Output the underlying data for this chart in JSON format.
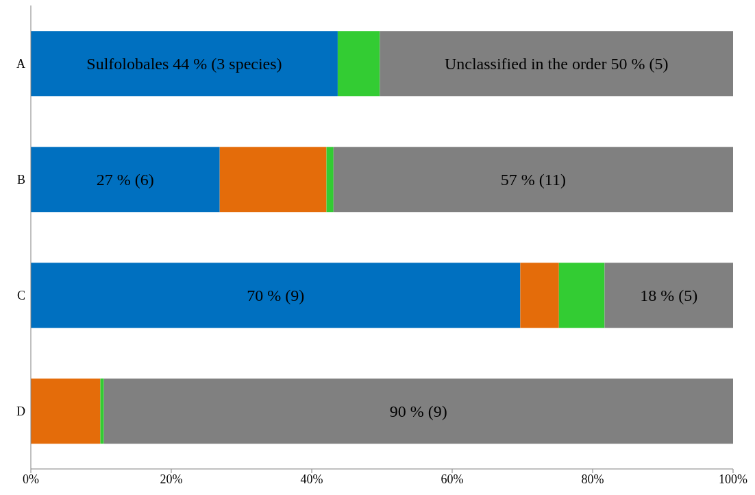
{
  "chart_data": {
    "type": "bar",
    "orientation": "horizontal",
    "stacked": true,
    "categories": [
      "A",
      "B",
      "C",
      "D"
    ],
    "series": [
      {
        "color": "#0070c0",
        "values": [
          43.7,
          26.9,
          69.7,
          null
        ],
        "value_labels": [
          "Sulfolobales 44 % (3 species)",
          "27 % (6)",
          "70 % (9)",
          null
        ]
      },
      {
        "color": "#e46c0a",
        "values": [
          null,
          15.2,
          5.5,
          9.9
        ],
        "value_labels": [
          null,
          null,
          null,
          null
        ]
      },
      {
        "color": "#33cc33",
        "values": [
          6.0,
          1.0,
          6.5,
          0.5
        ],
        "value_labels": [
          null,
          null,
          null,
          null
        ]
      },
      {
        "color": "#808080",
        "values": [
          50.3,
          56.9,
          18.3,
          89.6
        ],
        "value_labels": [
          "Unclassified in the order 50 % (5)",
          "57 % (11)",
          "18 % (5)",
          "90 % (9)"
        ]
      }
    ],
    "xlim": [
      0,
      100
    ],
    "xticks": [
      {
        "value": 0,
        "label": "0%"
      },
      {
        "value": 20,
        "label": "20%"
      },
      {
        "value": 40,
        "label": "40%"
      },
      {
        "value": 60,
        "label": "60%"
      },
      {
        "value": 80,
        "label": "80%"
      },
      {
        "value": 100,
        "label": "100%"
      }
    ],
    "xlabel": null
  }
}
